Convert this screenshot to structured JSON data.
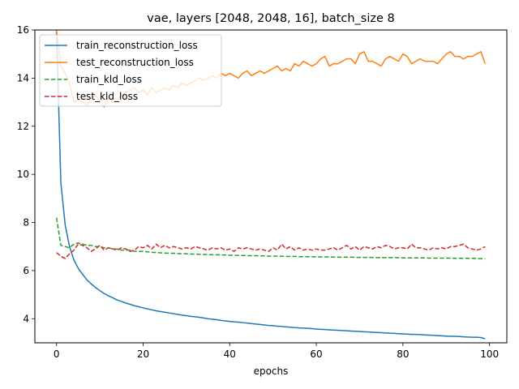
{
  "chart_data": {
    "type": "line",
    "title": "vae, layers [2048, 2048, 16], batch_size 8",
    "xlabel": "epochs",
    "ylabel": "",
    "xlim": [
      -5,
      104
    ],
    "ylim": [
      3.0,
      16.0
    ],
    "xticks": [
      0,
      20,
      40,
      60,
      80,
      100
    ],
    "yticks": [
      4,
      6,
      8,
      10,
      12,
      14,
      16
    ],
    "grid": false,
    "legend_position": "top-left",
    "x": [
      0,
      1,
      2,
      3,
      4,
      5,
      6,
      7,
      8,
      9,
      10,
      11,
      12,
      13,
      14,
      15,
      16,
      17,
      18,
      19,
      20,
      21,
      22,
      23,
      24,
      25,
      26,
      27,
      28,
      29,
      30,
      31,
      32,
      33,
      34,
      35,
      36,
      37,
      38,
      39,
      40,
      41,
      42,
      43,
      44,
      45,
      46,
      47,
      48,
      49,
      50,
      51,
      52,
      53,
      54,
      55,
      56,
      57,
      58,
      59,
      60,
      61,
      62,
      63,
      64,
      65,
      66,
      67,
      68,
      69,
      70,
      71,
      72,
      73,
      74,
      75,
      76,
      77,
      78,
      79,
      80,
      81,
      82,
      83,
      84,
      85,
      86,
      87,
      88,
      89,
      90,
      91,
      92,
      93,
      94,
      95,
      96,
      97,
      98,
      99
    ],
    "series": [
      {
        "name": "train_reconstruction_loss",
        "color": "#1f77b4",
        "dash": "solid",
        "values": [
          16.0,
          9.65,
          7.9,
          7.0,
          6.45,
          6.1,
          5.85,
          5.62,
          5.45,
          5.3,
          5.17,
          5.05,
          4.95,
          4.87,
          4.78,
          4.72,
          4.65,
          4.6,
          4.54,
          4.5,
          4.45,
          4.41,
          4.37,
          4.33,
          4.3,
          4.27,
          4.24,
          4.21,
          4.18,
          4.15,
          4.13,
          4.1,
          4.08,
          4.06,
          4.03,
          4.0,
          3.98,
          3.96,
          3.93,
          3.91,
          3.89,
          3.87,
          3.86,
          3.84,
          3.82,
          3.8,
          3.78,
          3.76,
          3.74,
          3.72,
          3.71,
          3.69,
          3.68,
          3.66,
          3.65,
          3.63,
          3.62,
          3.61,
          3.6,
          3.59,
          3.57,
          3.56,
          3.55,
          3.54,
          3.53,
          3.52,
          3.51,
          3.5,
          3.49,
          3.48,
          3.47,
          3.46,
          3.45,
          3.44,
          3.43,
          3.42,
          3.41,
          3.4,
          3.39,
          3.38,
          3.37,
          3.36,
          3.35,
          3.35,
          3.34,
          3.33,
          3.32,
          3.31,
          3.3,
          3.29,
          3.28,
          3.27,
          3.27,
          3.26,
          3.25,
          3.24,
          3.23,
          3.23,
          3.22,
          3.17
        ]
      },
      {
        "name": "test_reconstruction_loss",
        "color": "#ff7f0e",
        "dash": "solid",
        "values": [
          16.0,
          14.5,
          14.2,
          13.8,
          13.0,
          13.1,
          13.0,
          12.9,
          13.1,
          13.3,
          13.0,
          12.8,
          13.2,
          13.0,
          13.1,
          13.3,
          13.4,
          13.5,
          13.6,
          13.4,
          13.5,
          13.3,
          13.6,
          13.4,
          13.5,
          13.6,
          13.5,
          13.7,
          13.6,
          13.8,
          13.7,
          13.8,
          13.9,
          14.0,
          13.9,
          14.0,
          14.1,
          14.0,
          14.2,
          14.1,
          14.2,
          14.1,
          14.0,
          14.2,
          14.3,
          14.1,
          14.2,
          14.3,
          14.2,
          14.3,
          14.4,
          14.5,
          14.3,
          14.4,
          14.3,
          14.6,
          14.5,
          14.7,
          14.6,
          14.5,
          14.6,
          14.8,
          14.9,
          14.5,
          14.6,
          14.6,
          14.7,
          14.8,
          14.8,
          14.6,
          15.0,
          15.1,
          14.7,
          14.7,
          14.6,
          14.5,
          14.8,
          14.9,
          14.8,
          14.7,
          15.0,
          14.9,
          14.6,
          14.7,
          14.8,
          14.7,
          14.7,
          14.7,
          14.6,
          14.8,
          15.0,
          15.1,
          14.9,
          14.9,
          14.8,
          14.9,
          14.9,
          15.0,
          15.1,
          14.6
        ]
      },
      {
        "name": "train_kld_loss",
        "color": "#2ca02c",
        "dash": "dashed",
        "values": [
          8.2,
          7.05,
          7.0,
          6.95,
          7.1,
          7.15,
          7.1,
          7.05,
          7.05,
          7.0,
          7.0,
          6.95,
          6.95,
          6.9,
          6.9,
          6.85,
          6.85,
          6.85,
          6.8,
          6.8,
          6.8,
          6.78,
          6.76,
          6.75,
          6.74,
          6.73,
          6.72,
          6.72,
          6.71,
          6.7,
          6.7,
          6.69,
          6.69,
          6.68,
          6.67,
          6.67,
          6.66,
          6.66,
          6.65,
          6.65,
          6.64,
          6.64,
          6.63,
          6.63,
          6.62,
          6.62,
          6.62,
          6.61,
          6.61,
          6.6,
          6.6,
          6.6,
          6.6,
          6.59,
          6.59,
          6.59,
          6.58,
          6.58,
          6.58,
          6.58,
          6.57,
          6.57,
          6.57,
          6.57,
          6.56,
          6.56,
          6.56,
          6.56,
          6.56,
          6.55,
          6.55,
          6.55,
          6.55,
          6.55,
          6.54,
          6.54,
          6.54,
          6.54,
          6.54,
          6.54,
          6.53,
          6.53,
          6.53,
          6.53,
          6.53,
          6.53,
          6.52,
          6.52,
          6.52,
          6.52,
          6.52,
          6.52,
          6.51,
          6.51,
          6.51,
          6.51,
          6.51,
          6.5,
          6.5,
          6.49
        ]
      },
      {
        "name": "test_kld_loss",
        "color": "#d62728",
        "dash": "dashed",
        "values": [
          6.75,
          6.6,
          6.5,
          6.7,
          6.85,
          7.1,
          7.05,
          6.95,
          6.8,
          6.9,
          7.05,
          6.85,
          6.95,
          6.9,
          6.85,
          6.95,
          6.9,
          6.8,
          6.85,
          7.0,
          6.95,
          7.05,
          6.9,
          7.1,
          6.95,
          7.05,
          6.95,
          7.0,
          6.95,
          6.9,
          6.95,
          6.9,
          7.0,
          6.95,
          6.9,
          6.85,
          6.95,
          6.9,
          6.95,
          6.85,
          6.9,
          6.8,
          6.95,
          6.9,
          6.95,
          6.9,
          6.85,
          6.9,
          6.85,
          6.8,
          6.95,
          6.85,
          7.1,
          6.9,
          7.0,
          6.85,
          6.95,
          6.85,
          6.9,
          6.85,
          6.9,
          6.85,
          6.85,
          6.9,
          6.95,
          6.85,
          6.95,
          7.05,
          6.9,
          7.0,
          6.85,
          7.0,
          6.95,
          6.9,
          7.0,
          6.95,
          7.05,
          7.0,
          6.9,
          6.95,
          6.95,
          6.9,
          7.1,
          6.95,
          6.95,
          6.9,
          6.85,
          6.95,
          6.9,
          6.95,
          6.9,
          7.0,
          7.0,
          7.05,
          7.1,
          6.95,
          6.9,
          6.85,
          6.9,
          7.0
        ]
      }
    ]
  }
}
